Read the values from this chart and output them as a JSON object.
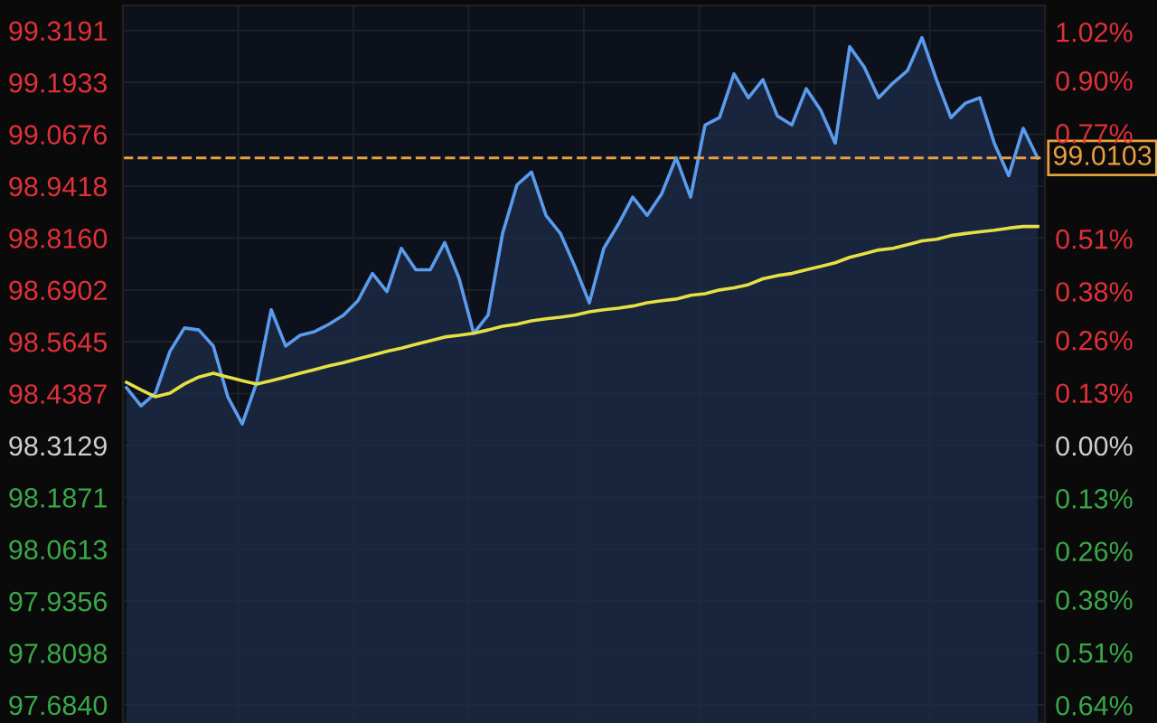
{
  "chart_data": {
    "type": "line",
    "categories": [
      null,
      null,
      null,
      null,
      null,
      null,
      null,
      null,
      null,
      null,
      null,
      null,
      null,
      null,
      null,
      null,
      null,
      null,
      null,
      null,
      null,
      null,
      null,
      null,
      null,
      null,
      null,
      null,
      null,
      null,
      null,
      null,
      null,
      null,
      null,
      null,
      null,
      null,
      null,
      null,
      null,
      null,
      null,
      null,
      null,
      null,
      null,
      null,
      null,
      null,
      null,
      null,
      null,
      null,
      null,
      null,
      null,
      null,
      null,
      null,
      null,
      null,
      null,
      null
    ],
    "series": [
      {
        "type": "area",
        "color": "#5b9bec",
        "values": [
          98.453,
          98.409,
          98.44,
          98.541,
          98.598,
          98.593,
          98.554,
          98.431,
          98.365,
          98.466,
          98.642,
          98.554,
          98.58,
          98.589,
          98.607,
          98.629,
          98.664,
          98.73,
          98.686,
          98.791,
          98.739,
          98.739,
          98.805,
          98.717,
          98.585,
          98.629,
          98.827,
          98.945,
          98.976,
          98.871,
          98.827,
          98.747,
          98.659,
          98.791,
          98.849,
          98.915,
          98.871,
          98.923,
          99.011,
          98.915,
          99.09,
          99.108,
          99.214,
          99.156,
          99.2,
          99.112,
          99.09,
          99.178,
          99.126,
          99.046,
          99.28,
          99.231,
          99.156,
          99.192,
          99.222,
          99.302,
          99.2,
          99.108,
          99.143,
          99.156,
          99.046,
          98.967,
          99.082,
          99.01
        ]
      },
      {
        "color": "#e6e044",
        "values": [
          98.466,
          98.448,
          98.431,
          98.44,
          98.462,
          98.479,
          98.488,
          98.479,
          98.47,
          98.462,
          98.47,
          98.479,
          98.488,
          98.497,
          98.506,
          98.514,
          98.523,
          98.532,
          98.541,
          98.549,
          98.558,
          98.567,
          98.576,
          98.58,
          98.585,
          98.593,
          98.602,
          98.607,
          98.615,
          98.62,
          98.624,
          98.629,
          98.637,
          98.642,
          98.646,
          98.651,
          98.659,
          98.664,
          98.668,
          98.677,
          98.681,
          98.69,
          98.695,
          98.703,
          98.717,
          98.725,
          98.73,
          98.739,
          98.747,
          98.756,
          98.769,
          98.778,
          98.787,
          98.791,
          98.8,
          98.809,
          98.813,
          98.822,
          98.827,
          98.831,
          98.835,
          98.84,
          98.844,
          98.844
        ]
      }
    ],
    "ylim": [
      97.64,
      99.38
    ],
    "yticks": [
      99.3191,
      99.1933,
      99.0676,
      98.9418,
      {
        "value": 98.816,
        "label": "98.8160"
      },
      98.6902,
      98.5645,
      98.4387,
      98.3129,
      98.1871,
      98.0613,
      97.9356,
      97.8098,
      {
        "value": 97.684,
        "label": "97.6840"
      }
    ],
    "y2lim": [
      -0.684,
      1.085
    ],
    "y2ticks": [
      {
        "value": 1.02,
        "label": "1.02%"
      },
      {
        "value": 0.9,
        "label": "0.90%"
      },
      {
        "value": 0.77,
        "label": "0.77%"
      },
      {
        "value": 0.51,
        "label": "0.51%"
      },
      {
        "value": 0.38,
        "label": "0.38%"
      },
      {
        "value": 0.26,
        "label": "0.26%"
      },
      {
        "value": 0.13,
        "label": "0.13%"
      },
      {
        "value": 0,
        "label": "0.00%"
      },
      {
        "value": -0.13,
        "label": "0.13%"
      },
      {
        "value": -0.26,
        "label": "0.26%"
      },
      {
        "value": -0.38,
        "label": "0.38%"
      },
      {
        "value": -0.51,
        "label": "0.51%"
      },
      {
        "value": -0.64,
        "label": "0.64%"
      }
    ],
    "ref_lines": [
      {
        "axis": "y",
        "value": 99.0103,
        "label": "99.0103",
        "color": "#e8a040",
        "line_style": "dashed"
      }
    ],
    "grid": true,
    "marker": "none",
    "line_style": "solid"
  }
}
